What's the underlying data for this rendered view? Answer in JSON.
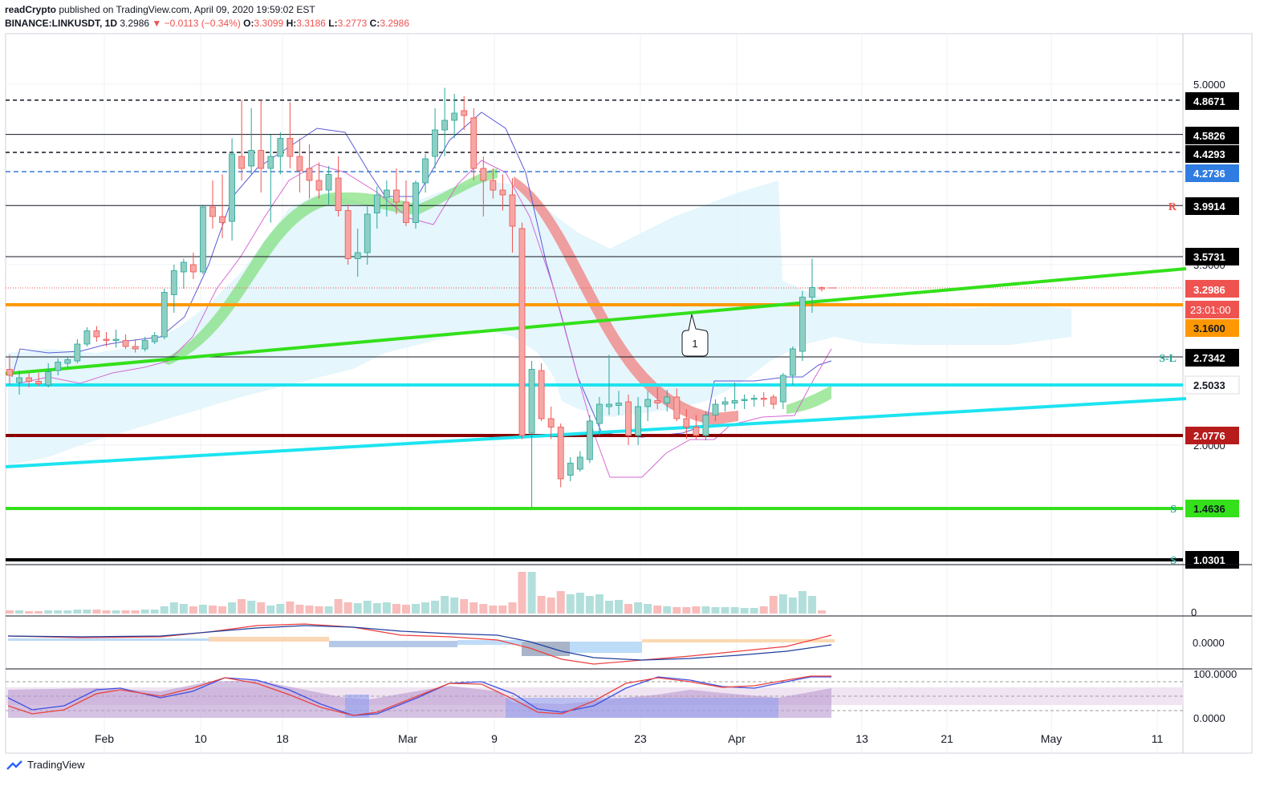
{
  "header": {
    "publisher": "readCrypto",
    "published_text": "published on TradingView.com, April 09, 2020 19:59:02 EST",
    "symbol": "BINANCE:LINKUSDT, 1D",
    "last": "3.2986",
    "change": "−0.0113 (−0.34%)",
    "o_label": "O:",
    "o": "3.3099",
    "h_label": "H:",
    "h": "3.3186",
    "l_label": "L:",
    "l": "3.2773",
    "c_label": "C:",
    "c": "3.2986"
  },
  "footer": {
    "brand": "TradingView"
  },
  "colors": {
    "up": "#26a69a",
    "up_body": "#8fcfc3",
    "down": "#ef5350",
    "down_body": "#f6a7a5",
    "green_line": "#33e01a",
    "cyan_line": "#1de4f0",
    "orange_line": "#ff9800",
    "darkred_line": "#8b0000",
    "blue_dash": "#3a7bd5"
  },
  "chart_data": {
    "type": "candlestick",
    "symbol": "BINANCE:LINKUSDT",
    "interval": "1D",
    "x_ticks": [
      "Feb",
      "10",
      "18",
      "Mar",
      "9",
      "23",
      "Apr",
      "13",
      "21",
      "May",
      "11"
    ],
    "y_ticks": [
      "5.0000",
      "3.5000",
      "2.0000"
    ],
    "countdown": "23:01:00",
    "candles": [
      {
        "o": 2.63,
        "h": 2.75,
        "l": 2.5,
        "c": 2.58
      },
      {
        "o": 2.52,
        "h": 2.62,
        "l": 2.42,
        "c": 2.56
      },
      {
        "o": 2.56,
        "h": 2.6,
        "l": 2.48,
        "c": 2.53
      },
      {
        "o": 2.53,
        "h": 2.6,
        "l": 2.49,
        "c": 2.51
      },
      {
        "o": 2.5,
        "h": 2.68,
        "l": 2.48,
        "c": 2.61
      },
      {
        "o": 2.62,
        "h": 2.72,
        "l": 2.58,
        "c": 2.69
      },
      {
        "o": 2.68,
        "h": 2.74,
        "l": 2.64,
        "c": 2.71
      },
      {
        "o": 2.7,
        "h": 2.88,
        "l": 2.68,
        "c": 2.84
      },
      {
        "o": 2.84,
        "h": 2.98,
        "l": 2.82,
        "c": 2.95
      },
      {
        "o": 2.95,
        "h": 2.99,
        "l": 2.86,
        "c": 2.9
      },
      {
        "o": 2.88,
        "h": 2.94,
        "l": 2.82,
        "c": 2.87
      },
      {
        "o": 2.87,
        "h": 2.96,
        "l": 2.81,
        "c": 2.88
      },
      {
        "o": 2.87,
        "h": 2.92,
        "l": 2.8,
        "c": 2.82
      },
      {
        "o": 2.82,
        "h": 2.88,
        "l": 2.77,
        "c": 2.8
      },
      {
        "o": 2.8,
        "h": 2.9,
        "l": 2.78,
        "c": 2.87
      },
      {
        "o": 2.86,
        "h": 2.94,
        "l": 2.84,
        "c": 2.91
      },
      {
        "o": 2.9,
        "h": 3.3,
        "l": 2.88,
        "c": 3.27
      },
      {
        "o": 3.25,
        "h": 3.5,
        "l": 3.1,
        "c": 3.45
      },
      {
        "o": 3.44,
        "h": 3.55,
        "l": 3.3,
        "c": 3.52
      },
      {
        "o": 3.5,
        "h": 3.6,
        "l": 3.38,
        "c": 3.44
      },
      {
        "o": 3.44,
        "h": 4.0,
        "l": 3.42,
        "c": 3.98
      },
      {
        "o": 3.98,
        "h": 4.2,
        "l": 3.8,
        "c": 3.9
      },
      {
        "o": 3.9,
        "h": 4.25,
        "l": 3.72,
        "c": 3.85
      },
      {
        "o": 3.86,
        "h": 4.55,
        "l": 3.7,
        "c": 4.42
      },
      {
        "o": 4.4,
        "h": 4.87,
        "l": 4.2,
        "c": 4.3
      },
      {
        "o": 4.32,
        "h": 4.8,
        "l": 4.25,
        "c": 4.45
      },
      {
        "o": 4.45,
        "h": 4.87,
        "l": 4.1,
        "c": 4.3
      },
      {
        "o": 4.3,
        "h": 4.58,
        "l": 3.85,
        "c": 4.4
      },
      {
        "o": 4.4,
        "h": 4.6,
        "l": 4.25,
        "c": 4.55
      },
      {
        "o": 4.55,
        "h": 4.85,
        "l": 4.3,
        "c": 4.4
      },
      {
        "o": 4.4,
        "h": 4.55,
        "l": 4.1,
        "c": 4.28
      },
      {
        "o": 4.3,
        "h": 4.5,
        "l": 4.05,
        "c": 4.2
      },
      {
        "o": 4.2,
        "h": 4.35,
        "l": 4.05,
        "c": 4.12
      },
      {
        "o": 4.12,
        "h": 4.32,
        "l": 4.0,
        "c": 4.25
      },
      {
        "o": 4.22,
        "h": 4.4,
        "l": 3.9,
        "c": 3.95
      },
      {
        "o": 3.95,
        "h": 4.0,
        "l": 3.5,
        "c": 3.55
      },
      {
        "o": 3.55,
        "h": 3.8,
        "l": 3.4,
        "c": 3.6
      },
      {
        "o": 3.6,
        "h": 4.0,
        "l": 3.5,
        "c": 3.92
      },
      {
        "o": 3.93,
        "h": 4.15,
        "l": 3.8,
        "c": 4.08
      },
      {
        "o": 4.06,
        "h": 4.2,
        "l": 3.9,
        "c": 4.12
      },
      {
        "o": 4.12,
        "h": 4.3,
        "l": 3.92,
        "c": 4.02
      },
      {
        "o": 4.02,
        "h": 4.2,
        "l": 3.82,
        "c": 3.85
      },
      {
        "o": 3.85,
        "h": 4.2,
        "l": 3.8,
        "c": 4.18
      },
      {
        "o": 4.18,
        "h": 4.42,
        "l": 4.1,
        "c": 4.38
      },
      {
        "o": 4.4,
        "h": 4.8,
        "l": 4.3,
        "c": 4.62
      },
      {
        "o": 4.62,
        "h": 4.97,
        "l": 4.4,
        "c": 4.7
      },
      {
        "o": 4.7,
        "h": 4.92,
        "l": 4.55,
        "c": 4.76
      },
      {
        "o": 4.78,
        "h": 4.9,
        "l": 4.62,
        "c": 4.74
      },
      {
        "o": 4.72,
        "h": 4.8,
        "l": 4.2,
        "c": 4.3
      },
      {
        "o": 4.3,
        "h": 4.4,
        "l": 3.9,
        "c": 4.2
      },
      {
        "o": 4.2,
        "h": 4.3,
        "l": 4.05,
        "c": 4.12
      },
      {
        "o": 4.12,
        "h": 4.25,
        "l": 3.95,
        "c": 4.08
      },
      {
        "o": 4.08,
        "h": 4.22,
        "l": 3.6,
        "c": 3.82
      },
      {
        "o": 3.8,
        "h": 3.85,
        "l": 2.05,
        "c": 2.08
      },
      {
        "o": 2.1,
        "h": 2.7,
        "l": 1.48,
        "c": 2.63
      },
      {
        "o": 2.62,
        "h": 2.68,
        "l": 2.2,
        "c": 2.22
      },
      {
        "o": 2.22,
        "h": 2.32,
        "l": 2.05,
        "c": 2.15
      },
      {
        "o": 2.15,
        "h": 2.18,
        "l": 1.65,
        "c": 1.72
      },
      {
        "o": 1.75,
        "h": 1.9,
        "l": 1.7,
        "c": 1.85
      },
      {
        "o": 1.8,
        "h": 1.95,
        "l": 1.78,
        "c": 1.9
      },
      {
        "o": 1.88,
        "h": 2.25,
        "l": 1.85,
        "c": 2.2
      },
      {
        "o": 2.18,
        "h": 2.4,
        "l": 2.08,
        "c": 2.34
      },
      {
        "o": 2.32,
        "h": 2.75,
        "l": 2.25,
        "c": 2.34
      },
      {
        "o": 2.33,
        "h": 2.45,
        "l": 2.25,
        "c": 2.35
      },
      {
        "o": 2.36,
        "h": 2.42,
        "l": 2.0,
        "c": 2.08
      },
      {
        "o": 2.08,
        "h": 2.4,
        "l": 2.0,
        "c": 2.32
      },
      {
        "o": 2.32,
        "h": 2.45,
        "l": 2.2,
        "c": 2.38
      },
      {
        "o": 2.37,
        "h": 2.48,
        "l": 2.3,
        "c": 2.35
      },
      {
        "o": 2.35,
        "h": 2.46,
        "l": 2.28,
        "c": 2.4
      },
      {
        "o": 2.4,
        "h": 2.47,
        "l": 2.2,
        "c": 2.22
      },
      {
        "o": 2.22,
        "h": 2.3,
        "l": 2.05,
        "c": 2.15
      },
      {
        "o": 2.15,
        "h": 2.25,
        "l": 2.05,
        "c": 2.08
      },
      {
        "o": 2.08,
        "h": 2.28,
        "l": 2.04,
        "c": 2.25
      },
      {
        "o": 2.25,
        "h": 2.38,
        "l": 2.2,
        "c": 2.34
      },
      {
        "o": 2.34,
        "h": 2.4,
        "l": 2.28,
        "c": 2.36
      },
      {
        "o": 2.35,
        "h": 2.52,
        "l": 2.3,
        "c": 2.37
      },
      {
        "o": 2.37,
        "h": 2.42,
        "l": 2.3,
        "c": 2.38
      },
      {
        "o": 2.38,
        "h": 2.42,
        "l": 2.32,
        "c": 2.39
      },
      {
        "o": 2.39,
        "h": 2.44,
        "l": 2.32,
        "c": 2.38
      },
      {
        "o": 2.4,
        "h": 2.42,
        "l": 2.3,
        "c": 2.34
      },
      {
        "o": 2.36,
        "h": 2.6,
        "l": 2.3,
        "c": 2.58
      },
      {
        "o": 2.58,
        "h": 2.82,
        "l": 2.5,
        "c": 2.8
      },
      {
        "o": 2.78,
        "h": 3.28,
        "l": 2.7,
        "c": 3.23
      },
      {
        "o": 3.23,
        "h": 3.55,
        "l": 3.1,
        "c": 3.31
      },
      {
        "o": 3.3099,
        "h": 3.3186,
        "l": 3.2773,
        "c": 3.2986
      }
    ],
    "indicator_labels": {
      "vol_zero": "0",
      "macd_zero": "0.0000",
      "rsi_top": "100.0000",
      "rsi_bottom": "0.0000"
    }
  },
  "levels": [
    {
      "label": "4.8671",
      "style": "dash-black",
      "value": 4.8671
    },
    {
      "label": "4.5826",
      "style": "solid-black",
      "value": 4.5826
    },
    {
      "label": "4.4293",
      "style": "dash-black",
      "value": 4.4293
    },
    {
      "label": "4.2736",
      "style": "dash-blue",
      "value": 4.2736
    },
    {
      "label": "3.9914",
      "style": "solid-black",
      "value": 3.9914,
      "tag": "R"
    },
    {
      "label": "3.5731",
      "style": "solid-black",
      "value": 3.5731
    },
    {
      "label": "3.1600",
      "style": "orange",
      "value": 3.16
    },
    {
      "label": "2.7342",
      "style": "solid-black",
      "value": 2.7342,
      "tag": "S-L"
    },
    {
      "label": "2.5033",
      "style": "cyan",
      "value": 2.5033
    },
    {
      "label": "2.0776",
      "style": "darkred",
      "value": 2.0776
    },
    {
      "label": "1.4636",
      "style": "green",
      "value": 1.4636,
      "tag": "S"
    },
    {
      "label": "1.0301",
      "style": "thick-black",
      "value": 1.0301,
      "tag": "S"
    }
  ],
  "price_tag": "3.2986",
  "callout": "1"
}
